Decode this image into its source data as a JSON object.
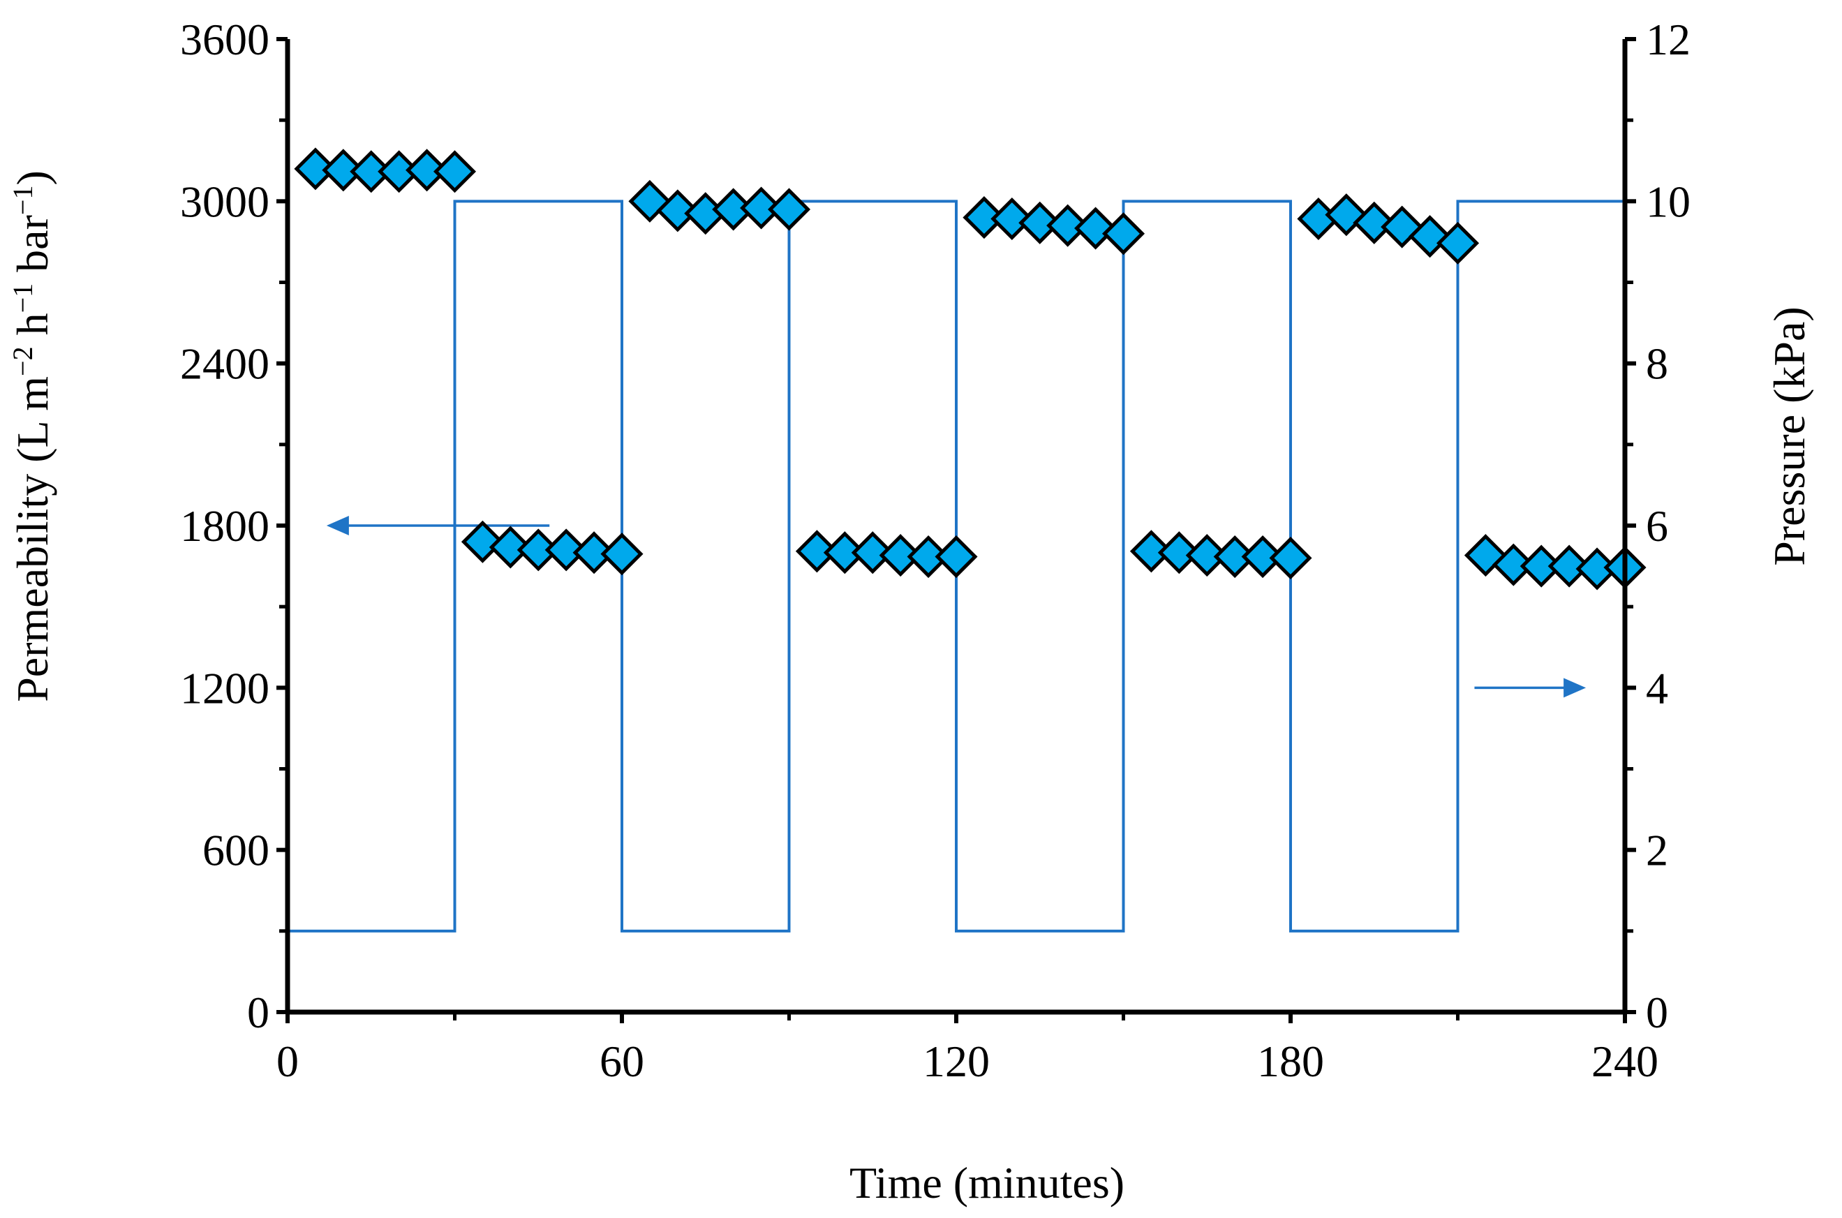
{
  "chart_data": {
    "type": "scatter+step",
    "title": "",
    "xlabel": "Time (minutes)",
    "ylabel_left": {
      "main": "Permeability (L m",
      "sup1": "−2",
      "mid1": " h",
      "sup2": "−1",
      "mid2": " bar",
      "sup3": "−1",
      "end": ")"
    },
    "ylabel_right": "Pressure (kPa)",
    "xlim": [
      0,
      240
    ],
    "ylim_left": [
      0,
      3600
    ],
    "ylim_right": [
      0,
      12
    ],
    "x_ticks": [
      0,
      60,
      120,
      180,
      240
    ],
    "y_left_ticks": [
      0,
      600,
      1200,
      1800,
      2400,
      3000,
      3600
    ],
    "y_right_ticks": [
      0,
      2,
      4,
      6,
      8,
      10,
      12
    ],
    "x_tick_labels": [
      "0",
      "60",
      "120",
      "180",
      "240"
    ],
    "y_left_tick_labels": [
      "0",
      "600",
      "1200",
      "1800",
      "2400",
      "3000",
      "3600"
    ],
    "y_right_tick_labels": [
      "0",
      "2",
      "4",
      "6",
      "8",
      "10",
      "12"
    ],
    "series": [
      {
        "name": "Permeability",
        "axis": "left",
        "marker": "diamond",
        "color": "#00A9EC",
        "edge_color": "#000000",
        "x": [
          5,
          10,
          15,
          20,
          25,
          30,
          35,
          40,
          45,
          50,
          55,
          60,
          65,
          70,
          75,
          80,
          85,
          90,
          95,
          100,
          105,
          110,
          115,
          120,
          125,
          130,
          135,
          140,
          145,
          150,
          155,
          160,
          165,
          170,
          175,
          180,
          185,
          190,
          195,
          200,
          205,
          210,
          215,
          220,
          225,
          230,
          235,
          240
        ],
        "y": [
          3120,
          3115,
          3110,
          3110,
          3115,
          3110,
          1740,
          1720,
          1710,
          1710,
          1700,
          1695,
          3000,
          2965,
          2955,
          2970,
          2975,
          2970,
          1705,
          1700,
          1700,
          1690,
          1685,
          1685,
          2940,
          2935,
          2920,
          2910,
          2900,
          2880,
          1705,
          1700,
          1690,
          1685,
          1685,
          1680,
          2935,
          2950,
          2920,
          2905,
          2870,
          2845,
          1690,
          1655,
          1650,
          1650,
          1640,
          1645
        ]
      },
      {
        "name": "Pressure",
        "axis": "right",
        "style": "step",
        "color": "#1F74C6",
        "x": [
          0,
          30,
          30,
          60,
          60,
          90,
          90,
          120,
          120,
          150,
          150,
          180,
          180,
          210,
          210,
          240
        ],
        "y": [
          1,
          1,
          10,
          10,
          1,
          1,
          10,
          10,
          1,
          1,
          10,
          10,
          1,
          1,
          10,
          10
        ]
      }
    ],
    "annotations": [
      {
        "type": "arrow",
        "direction": "left",
        "points_to_axis": "left",
        "from": [
          47,
          1800
        ],
        "to": [
          7,
          1800
        ],
        "axis": "left"
      },
      {
        "type": "arrow",
        "direction": "right",
        "points_to_axis": "right",
        "from": [
          213,
          4
        ],
        "to": [
          233,
          4
        ],
        "axis": "right"
      }
    ],
    "grid": false,
    "legend": "none"
  }
}
